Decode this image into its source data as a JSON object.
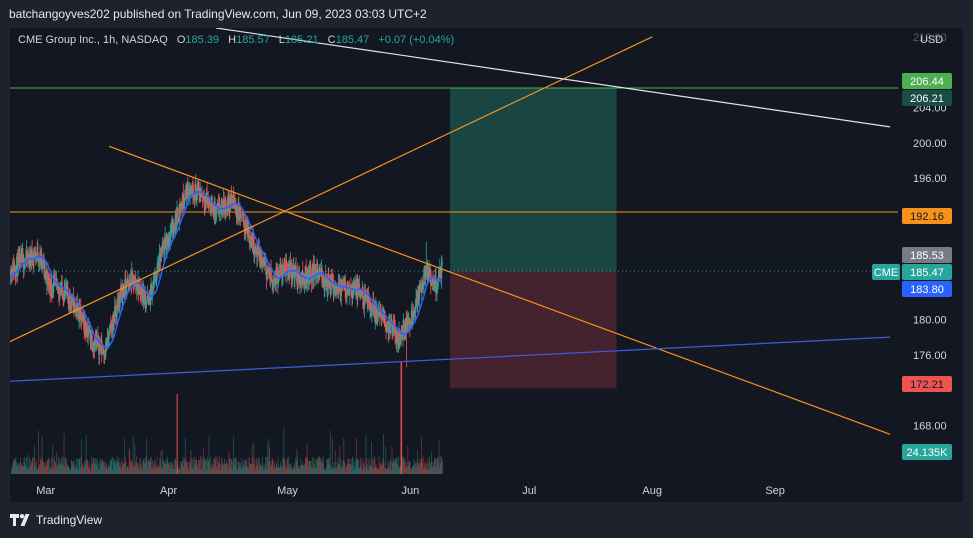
{
  "header": {
    "publish_line": "batchangoyves202 published on TradingView.com, Jun 09, 2023 03:03 UTC+2"
  },
  "footer": {
    "brand": "TradingView"
  },
  "legend": {
    "symbol": "CME Group Inc., 1h, NASDAQ",
    "o_label": "O",
    "o_value": "185.39",
    "h_label": "H",
    "h_value": "185.57",
    "l_label": "L",
    "l_value": "185.21",
    "c_label": "C",
    "c_value": "185.47",
    "change": "+0.07 (+0.04%)"
  },
  "colors": {
    "up": "#26a69a",
    "down": "#ef5350",
    "ma": "#2962ff",
    "trendline": "#f7931a",
    "white_line": "#e0e3eb",
    "blue_line": "#3f5bd8",
    "green_line": "#4caf50",
    "profit_zone": "#1b4d48",
    "loss_zone": "#4d2430"
  },
  "chart_data": {
    "type": "candlestick",
    "currency": "USD",
    "symbol_tag": "CME",
    "y_ticks": [
      "212.00",
      "204.00",
      "200.00",
      "196.00",
      "180.00",
      "176.00",
      "168.00"
    ],
    "x_ticks": [
      "Mar",
      "Apr",
      "May",
      "Jun",
      "Jul",
      "Aug",
      "Sep"
    ],
    "price_labels": [
      {
        "value": "206.44",
        "style": "green"
      },
      {
        "value": "206.21",
        "style": "dark-green"
      },
      {
        "value": "192.16",
        "style": "orange"
      },
      {
        "value": "185.53",
        "style": "gray"
      },
      {
        "value": "185.47",
        "style": "teal"
      },
      {
        "value": "183.80",
        "style": "blue"
      },
      {
        "value": "172.21",
        "style": "red"
      },
      {
        "value": "24.135K",
        "style": "teal"
      }
    ],
    "series_path": [
      [
        "2023-02-20",
        185.5
      ],
      [
        "2023-02-23",
        186.5
      ],
      [
        "2023-02-27",
        187.5
      ],
      [
        "2023-03-02",
        184.0
      ],
      [
        "2023-03-06",
        183.0
      ],
      [
        "2023-03-09",
        181.0
      ],
      [
        "2023-03-13",
        177.5
      ],
      [
        "2023-03-16",
        176.5
      ],
      [
        "2023-03-20",
        183.0
      ],
      [
        "2023-03-23",
        184.5
      ],
      [
        "2023-03-27",
        182.0
      ],
      [
        "2023-03-30",
        187.0
      ],
      [
        "2023-04-03",
        191.5
      ],
      [
        "2023-04-06",
        195.0
      ],
      [
        "2023-04-10",
        194.0
      ],
      [
        "2023-04-13",
        192.0
      ],
      [
        "2023-04-17",
        193.5
      ],
      [
        "2023-04-20",
        191.0
      ],
      [
        "2023-04-24",
        187.0
      ],
      [
        "2023-04-27",
        184.5
      ],
      [
        "2023-05-01",
        186.0
      ],
      [
        "2023-05-04",
        184.5
      ],
      [
        "2023-05-08",
        185.5
      ],
      [
        "2023-05-11",
        184.0
      ],
      [
        "2023-05-15",
        183.5
      ],
      [
        "2023-05-18",
        183.5
      ],
      [
        "2023-05-22",
        181.5
      ],
      [
        "2023-05-25",
        180.0
      ],
      [
        "2023-05-29",
        178.0
      ],
      [
        "2023-06-01",
        180.0
      ],
      [
        "2023-06-05",
        185.5
      ],
      [
        "2023-06-07",
        183.5
      ],
      [
        "2023-06-09",
        185.47
      ]
    ],
    "trade_box": {
      "x_start": "2023-06-11",
      "x_end": "2023-07-23",
      "entry": 185.47,
      "target": 206.21,
      "stop": 172.21
    },
    "horizontal_lines": [
      206.21,
      192.16
    ],
    "trendlines": [
      {
        "from": [
          "2023-02-20",
          177.5
        ],
        "to": [
          "2023-08-01",
          212.0
        ],
        "color": "orange"
      },
      {
        "from": [
          "2023-03-17",
          199.6
        ],
        "to": [
          "2023-09-30",
          167.0
        ],
        "color": "orange"
      },
      {
        "from": [
          "2023-02-20",
          173.0
        ],
        "to": [
          "2023-09-30",
          178.0
        ],
        "color": "blue"
      },
      {
        "from": [
          "2023-04-13",
          213.0
        ],
        "to": [
          "2023-09-30",
          201.8
        ],
        "color": "white"
      }
    ],
    "x_range": [
      "2023-02-20",
      "2023-10-02"
    ],
    "y_range": [
      162.5,
      213.0
    ]
  }
}
